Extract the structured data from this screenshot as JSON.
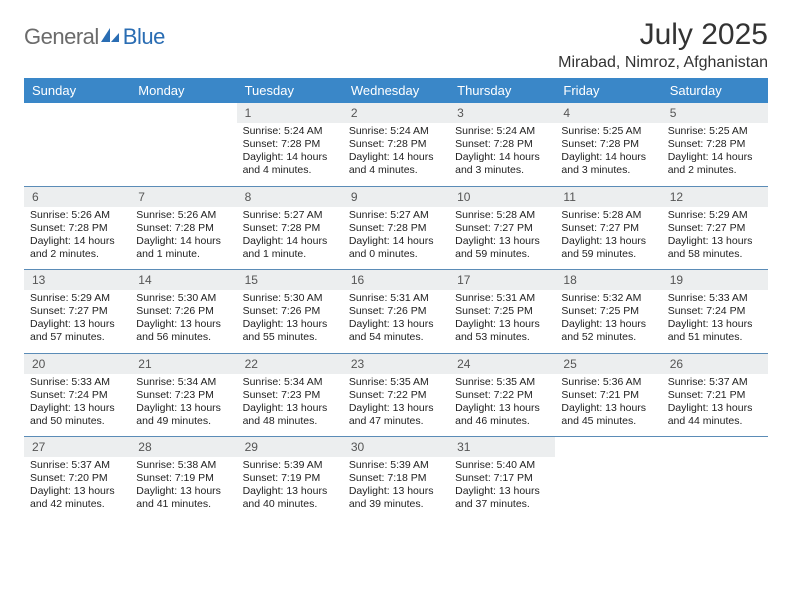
{
  "brand": {
    "part1": "General",
    "part2": "Blue"
  },
  "title": "July 2025",
  "location": "Mirabad, Nimroz, Afghanistan",
  "colors": {
    "header_bg": "#3a87c8",
    "header_text": "#ffffff",
    "daynum_bg": "#eceeef",
    "row_border": "#5b8cb7",
    "brand_gray": "#6b6b6b",
    "brand_blue": "#2a6db3"
  },
  "weekdays": [
    "Sunday",
    "Monday",
    "Tuesday",
    "Wednesday",
    "Thursday",
    "Friday",
    "Saturday"
  ],
  "weeks": [
    [
      {
        "n": "",
        "sr": "",
        "ss": "",
        "dl": "",
        "empty": true
      },
      {
        "n": "",
        "sr": "",
        "ss": "",
        "dl": "",
        "empty": true
      },
      {
        "n": "1",
        "sr": "Sunrise: 5:24 AM",
        "ss": "Sunset: 7:28 PM",
        "dl": "Daylight: 14 hours and 4 minutes."
      },
      {
        "n": "2",
        "sr": "Sunrise: 5:24 AM",
        "ss": "Sunset: 7:28 PM",
        "dl": "Daylight: 14 hours and 4 minutes."
      },
      {
        "n": "3",
        "sr": "Sunrise: 5:24 AM",
        "ss": "Sunset: 7:28 PM",
        "dl": "Daylight: 14 hours and 3 minutes."
      },
      {
        "n": "4",
        "sr": "Sunrise: 5:25 AM",
        "ss": "Sunset: 7:28 PM",
        "dl": "Daylight: 14 hours and 3 minutes."
      },
      {
        "n": "5",
        "sr": "Sunrise: 5:25 AM",
        "ss": "Sunset: 7:28 PM",
        "dl": "Daylight: 14 hours and 2 minutes."
      }
    ],
    [
      {
        "n": "6",
        "sr": "Sunrise: 5:26 AM",
        "ss": "Sunset: 7:28 PM",
        "dl": "Daylight: 14 hours and 2 minutes."
      },
      {
        "n": "7",
        "sr": "Sunrise: 5:26 AM",
        "ss": "Sunset: 7:28 PM",
        "dl": "Daylight: 14 hours and 1 minute."
      },
      {
        "n": "8",
        "sr": "Sunrise: 5:27 AM",
        "ss": "Sunset: 7:28 PM",
        "dl": "Daylight: 14 hours and 1 minute."
      },
      {
        "n": "9",
        "sr": "Sunrise: 5:27 AM",
        "ss": "Sunset: 7:28 PM",
        "dl": "Daylight: 14 hours and 0 minutes."
      },
      {
        "n": "10",
        "sr": "Sunrise: 5:28 AM",
        "ss": "Sunset: 7:27 PM",
        "dl": "Daylight: 13 hours and 59 minutes."
      },
      {
        "n": "11",
        "sr": "Sunrise: 5:28 AM",
        "ss": "Sunset: 7:27 PM",
        "dl": "Daylight: 13 hours and 59 minutes."
      },
      {
        "n": "12",
        "sr": "Sunrise: 5:29 AM",
        "ss": "Sunset: 7:27 PM",
        "dl": "Daylight: 13 hours and 58 minutes."
      }
    ],
    [
      {
        "n": "13",
        "sr": "Sunrise: 5:29 AM",
        "ss": "Sunset: 7:27 PM",
        "dl": "Daylight: 13 hours and 57 minutes."
      },
      {
        "n": "14",
        "sr": "Sunrise: 5:30 AM",
        "ss": "Sunset: 7:26 PM",
        "dl": "Daylight: 13 hours and 56 minutes."
      },
      {
        "n": "15",
        "sr": "Sunrise: 5:30 AM",
        "ss": "Sunset: 7:26 PM",
        "dl": "Daylight: 13 hours and 55 minutes."
      },
      {
        "n": "16",
        "sr": "Sunrise: 5:31 AM",
        "ss": "Sunset: 7:26 PM",
        "dl": "Daylight: 13 hours and 54 minutes."
      },
      {
        "n": "17",
        "sr": "Sunrise: 5:31 AM",
        "ss": "Sunset: 7:25 PM",
        "dl": "Daylight: 13 hours and 53 minutes."
      },
      {
        "n": "18",
        "sr": "Sunrise: 5:32 AM",
        "ss": "Sunset: 7:25 PM",
        "dl": "Daylight: 13 hours and 52 minutes."
      },
      {
        "n": "19",
        "sr": "Sunrise: 5:33 AM",
        "ss": "Sunset: 7:24 PM",
        "dl": "Daylight: 13 hours and 51 minutes."
      }
    ],
    [
      {
        "n": "20",
        "sr": "Sunrise: 5:33 AM",
        "ss": "Sunset: 7:24 PM",
        "dl": "Daylight: 13 hours and 50 minutes."
      },
      {
        "n": "21",
        "sr": "Sunrise: 5:34 AM",
        "ss": "Sunset: 7:23 PM",
        "dl": "Daylight: 13 hours and 49 minutes."
      },
      {
        "n": "22",
        "sr": "Sunrise: 5:34 AM",
        "ss": "Sunset: 7:23 PM",
        "dl": "Daylight: 13 hours and 48 minutes."
      },
      {
        "n": "23",
        "sr": "Sunrise: 5:35 AM",
        "ss": "Sunset: 7:22 PM",
        "dl": "Daylight: 13 hours and 47 minutes."
      },
      {
        "n": "24",
        "sr": "Sunrise: 5:35 AM",
        "ss": "Sunset: 7:22 PM",
        "dl": "Daylight: 13 hours and 46 minutes."
      },
      {
        "n": "25",
        "sr": "Sunrise: 5:36 AM",
        "ss": "Sunset: 7:21 PM",
        "dl": "Daylight: 13 hours and 45 minutes."
      },
      {
        "n": "26",
        "sr": "Sunrise: 5:37 AM",
        "ss": "Sunset: 7:21 PM",
        "dl": "Daylight: 13 hours and 44 minutes."
      }
    ],
    [
      {
        "n": "27",
        "sr": "Sunrise: 5:37 AM",
        "ss": "Sunset: 7:20 PM",
        "dl": "Daylight: 13 hours and 42 minutes."
      },
      {
        "n": "28",
        "sr": "Sunrise: 5:38 AM",
        "ss": "Sunset: 7:19 PM",
        "dl": "Daylight: 13 hours and 41 minutes."
      },
      {
        "n": "29",
        "sr": "Sunrise: 5:39 AM",
        "ss": "Sunset: 7:19 PM",
        "dl": "Daylight: 13 hours and 40 minutes."
      },
      {
        "n": "30",
        "sr": "Sunrise: 5:39 AM",
        "ss": "Sunset: 7:18 PM",
        "dl": "Daylight: 13 hours and 39 minutes."
      },
      {
        "n": "31",
        "sr": "Sunrise: 5:40 AM",
        "ss": "Sunset: 7:17 PM",
        "dl": "Daylight: 13 hours and 37 minutes."
      },
      {
        "n": "",
        "sr": "",
        "ss": "",
        "dl": "",
        "empty": true
      },
      {
        "n": "",
        "sr": "",
        "ss": "",
        "dl": "",
        "empty": true
      }
    ]
  ]
}
